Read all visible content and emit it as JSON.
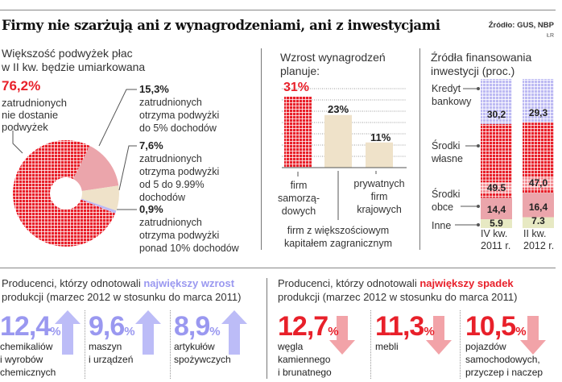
{
  "header": {
    "title": "Firmy nie szarżują ani z wynagrodzeniami, ani z inwestycjami",
    "source": "Źródło: GUS, NBP",
    "author": "ŁR"
  },
  "colors": {
    "red": "#e8202a",
    "pink": "#eba5ab",
    "beige": "#efe2c9",
    "lavender": "#bdbaf3",
    "green": "#e7e9c3",
    "up_arrow": "#bcbcf7",
    "down_arrow": "#f2a3a8",
    "highlight_up": "#9a98f0"
  },
  "chart_data": [
    {
      "type": "pie",
      "title": "Większość podwyżek płac\nw II kw. będzie umiarkowana",
      "donut": true,
      "slices": [
        {
          "value": 76.2,
          "value_label": "76,2%",
          "label": "zatrudnionych\nnie dostanie\npodwyżek",
          "color": "#e8202a",
          "pattern": "checkered"
        },
        {
          "value": 15.3,
          "value_label": "15,3%",
          "label": "zatrudnionych\notrzyma podwyżki\ndo 5% dochodów",
          "color": "#eba5ab"
        },
        {
          "value": 7.6,
          "value_label": "7,6%",
          "label": "zatrudnionych\notrzyma podwyżki\nod 5 do 9.99%\ndochodów",
          "color": "#efe2c9"
        },
        {
          "value": 0.9,
          "value_label": "0,9%",
          "label": "zatrudnionych\notrzyma podwyżki\nponad 10% dochodów",
          "color": "#bdbaf3"
        }
      ]
    },
    {
      "type": "bar",
      "title": "Wzrost wynagrodzeń\nplanuje:",
      "ylim": [
        0,
        35
      ],
      "grid": true,
      "categories": [
        "firm\nsamorzą-\ndowych",
        "firm z większościowym\nkapitałem zagranicznym",
        "prywatnych\nfirm\nkrajowych"
      ],
      "values": [
        31,
        23,
        11
      ],
      "value_labels": [
        "31%",
        "23%",
        "11%"
      ],
      "colors": [
        "#e8202a",
        "#efe2c9",
        "#efe2c9"
      ]
    },
    {
      "type": "bar",
      "stacked": true,
      "title": "Źródła finansowania\ninwestycji (proc.)",
      "categories": [
        "IV kw.\n2011 r.",
        "II kw.\n2012 r."
      ],
      "series": [
        {
          "name": "Kredyt\nbankowy",
          "values": [
            30.2,
            29.3
          ],
          "value_labels": [
            "30,2",
            "29,3"
          ],
          "color": "#bdbaf3"
        },
        {
          "name": "Środki\nwłasne",
          "values": [
            49.5,
            47.0
          ],
          "value_labels": [
            "49.5",
            "47,0"
          ],
          "color": "#e8202a"
        },
        {
          "name": "Środki\nobce",
          "values": [
            14.4,
            16.4
          ],
          "value_labels": [
            "14,4",
            "16,4"
          ],
          "color": "#eba5ab"
        },
        {
          "name": "Inne",
          "values": [
            5.9,
            7.3
          ],
          "value_labels": [
            "5.9",
            "7.3"
          ],
          "color": "#e7e9c3"
        }
      ]
    }
  ],
  "production": {
    "increase": {
      "prefix": "Producenci, którzy odnotowali ",
      "highlight": "największy wzrost",
      "suffix": "\nprodukcji (marzec 2012 w stosunku do marca 2011)",
      "items": [
        {
          "value": "12,4",
          "unit": "%",
          "label": "chemikaliów\ni wyrobów\nchemicznych"
        },
        {
          "value": "9,6",
          "unit": "%",
          "label": "maszyn\ni urządzeń"
        },
        {
          "value": "8,9",
          "unit": "%",
          "label": "artykułów\nspożywczych"
        }
      ]
    },
    "decrease": {
      "prefix": "Producenci, którzy odnotowali ",
      "highlight": "największy spadek",
      "suffix": "\nprodukcji (marzec 2012 w stosunku do marca 2011)",
      "items": [
        {
          "value": "12,7",
          "unit": "%",
          "label": "węgla\nkamiennego\ni brunatnego"
        },
        {
          "value": "11,3",
          "unit": "%",
          "label": "mebli"
        },
        {
          "value": "10,5",
          "unit": "%",
          "label": "pojazdów\nsamochodowych,\nprzyczep i naczep"
        }
      ]
    }
  }
}
